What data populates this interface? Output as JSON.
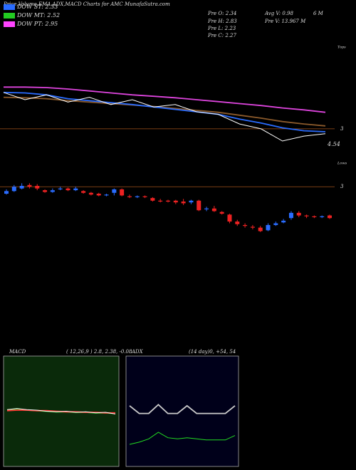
{
  "header": {
    "title": "Price,Volume,EMA,ADX,MACD Charts for AMC MunafaSutra.com",
    "legend": [
      {
        "label": "DOW ST: 2.33",
        "color": "#2a6cff"
      },
      {
        "label": "DOW MT: 2.52",
        "color": "#22cc22"
      },
      {
        "label": "DOW PT: 2.95",
        "color": "#ff44ff"
      }
    ],
    "stats": [
      "Pre O: 2.34",
      "Pre H: 2.83",
      "Pre L: 2.23",
      "Pre C: 2.27",
      "Avg V: 0.98",
      "6 M",
      "Pre V: 13.967 M"
    ],
    "tops": "Tops",
    "lows": "Lows"
  },
  "chart_data": [
    {
      "type": "line",
      "categories": [
        null,
        null,
        null,
        null,
        null,
        null,
        null,
        null,
        null,
        null,
        null,
        null,
        null,
        null,
        null,
        null
      ],
      "ylim": [
        2.5,
        4.7
      ],
      "yticks": [
        3
      ],
      "grid": true,
      "grid_color": "#a0521a",
      "annotation": "4.54",
      "series": [
        {
          "color": "#dd44dd",
          "values": [
            3.86,
            3.86,
            3.85,
            3.82,
            3.78,
            3.74,
            3.7,
            3.67,
            3.64,
            3.6,
            3.56,
            3.52,
            3.48,
            3.43,
            3.39,
            3.34
          ]
        },
        {
          "color": "#8b5a2b",
          "values": [
            3.65,
            3.64,
            3.62,
            3.58,
            3.55,
            3.52,
            3.49,
            3.46,
            3.42,
            3.38,
            3.34,
            3.28,
            3.22,
            3.15,
            3.1,
            3.06
          ]
        },
        {
          "color": "#2a6cff",
          "values": [
            3.75,
            3.74,
            3.7,
            3.62,
            3.58,
            3.54,
            3.5,
            3.45,
            3.4,
            3.35,
            3.3,
            3.2,
            3.12,
            3.02,
            2.96,
            2.94
          ]
        },
        {
          "color": "#ffffff",
          "values": [
            3.75,
            3.6,
            3.7,
            3.55,
            3.65,
            3.5,
            3.6,
            3.45,
            3.5,
            3.35,
            3.3,
            3.1,
            3.0,
            2.75,
            2.85,
            2.9
          ]
        }
      ]
    },
    {
      "type": "candlestick",
      "ylim": [
        2.2,
        3.1
      ],
      "yticks": [
        3
      ],
      "grid": true,
      "grid_color": "#a0521a",
      "up_color": "#2a6cff",
      "down_color": "#ee2222",
      "open": [
        2.92,
        2.95,
        2.98,
        3.02,
        3.01,
        2.96,
        2.94,
        2.97,
        2.98,
        2.96,
        2.95,
        2.93,
        2.92,
        2.9,
        2.93,
        2.97,
        2.89,
        2.88,
        2.89,
        2.87,
        2.84,
        2.84,
        2.84,
        2.83,
        2.82,
        2.84,
        2.74,
        2.75,
        2.71,
        2.68,
        2.6,
        2.56,
        2.54,
        2.53,
        2.5,
        2.56,
        2.59,
        2.64,
        2.7,
        2.67,
        2.66,
        2.65,
        2.67
      ],
      "high": [
        2.97,
        3.02,
        3.04,
        3.04,
        3.03,
        2.97,
        2.98,
        3.0,
        2.99,
        3.0,
        2.96,
        2.94,
        2.93,
        2.92,
        2.98,
        2.98,
        2.91,
        2.9,
        2.9,
        2.88,
        2.86,
        2.85,
        2.85,
        2.86,
        2.85,
        2.85,
        2.77,
        2.78,
        2.72,
        2.69,
        2.62,
        2.58,
        2.56,
        2.55,
        2.58,
        2.6,
        2.63,
        2.72,
        2.72,
        2.68,
        2.67,
        2.67,
        2.68
      ],
      "low": [
        2.91,
        2.94,
        2.97,
        2.98,
        2.96,
        2.93,
        2.93,
        2.96,
        2.95,
        2.95,
        2.92,
        2.9,
        2.89,
        2.89,
        2.9,
        2.89,
        2.87,
        2.87,
        2.87,
        2.83,
        2.82,
        2.82,
        2.8,
        2.79,
        2.8,
        2.72,
        2.72,
        2.71,
        2.68,
        2.58,
        2.55,
        2.53,
        2.51,
        2.48,
        2.49,
        2.55,
        2.58,
        2.62,
        2.65,
        2.64,
        2.64,
        2.64,
        2.63
      ],
      "close": [
        2.95,
        3.0,
        3.01,
        3.0,
        2.98,
        2.94,
        2.96,
        2.98,
        2.96,
        2.98,
        2.93,
        2.91,
        2.9,
        2.91,
        2.97,
        2.9,
        2.88,
        2.89,
        2.88,
        2.84,
        2.83,
        2.83,
        2.82,
        2.81,
        2.84,
        2.73,
        2.75,
        2.72,
        2.69,
        2.6,
        2.57,
        2.55,
        2.53,
        2.49,
        2.56,
        2.58,
        2.61,
        2.7,
        2.67,
        2.66,
        2.65,
        2.66,
        2.64
      ]
    },
    {
      "type": "line",
      "title": "MACD",
      "subtitle": "( 12,26,9 ) 2.8, 2.38, -0.08",
      "background": "#0a2a0a",
      "categories": [
        null,
        null,
        null,
        null,
        null,
        null,
        null,
        null,
        null,
        null,
        null,
        null
      ],
      "ylim": [
        -1,
        1
      ],
      "series": [
        {
          "color": "#22cc22",
          "values": [
            0.02,
            0.03,
            0.02,
            0.01,
            0.0,
            -0.01,
            -0.01,
            -0.02,
            -0.02,
            -0.03,
            -0.03,
            -0.04
          ]
        },
        {
          "color": "#ff3333",
          "values": [
            0.01,
            0.02,
            0.02,
            0.01,
            0.01,
            0.0,
            -0.01,
            -0.01,
            -0.02,
            -0.02,
            -0.03,
            -0.03
          ]
        },
        {
          "color": "#ffffff",
          "values": [
            0.03,
            0.05,
            0.03,
            0.02,
            0.0,
            -0.01,
            0.0,
            -0.02,
            -0.01,
            -0.03,
            -0.02,
            -0.05
          ]
        }
      ]
    },
    {
      "type": "line",
      "title": "ADX",
      "subtitle": "(14 day)0, +54, 54",
      "background": "#00001a",
      "categories": [
        null,
        null,
        null,
        null,
        null,
        null,
        null,
        null,
        null,
        null,
        null,
        null
      ],
      "ylim": [
        0,
        100
      ],
      "series": [
        {
          "color": "#cccccc",
          "values": [
            55,
            48,
            48,
            56,
            48,
            48,
            55,
            48,
            48,
            48,
            48,
            55
          ]
        },
        {
          "color": "#22dd22",
          "values": [
            20,
            22,
            25,
            31,
            26,
            25,
            26,
            25,
            24,
            24,
            24,
            28
          ]
        }
      ]
    }
  ]
}
